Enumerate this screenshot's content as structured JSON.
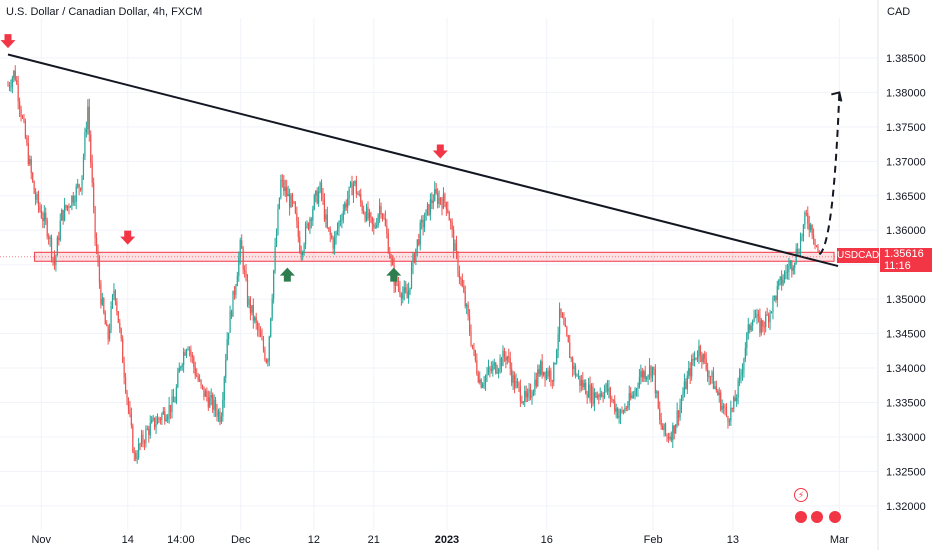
{
  "header": {
    "title": "U.S. Dollar / Canadian Dollar, 4h, FXCM",
    "currency": "CAD"
  },
  "price_axis": {
    "symbol_label": "USDCAD",
    "current_price": "1.35616",
    "countdown": "11:16"
  },
  "colors": {
    "bull": "#26a69a",
    "bear": "#ef5350",
    "trendline": "#131722",
    "zone_fill": "rgba(242,54,69,0.15)",
    "zone_stroke": "#f23645",
    "arrow_down": "#f23645",
    "arrow_up": "#2e7d4f"
  },
  "icons": [
    "arrow-down-icon",
    "arrow-up-icon",
    "flash-icon",
    "economic-event-icon"
  ],
  "chart_data": {
    "type": "candlestick",
    "title": "U.S. Dollar / Canadian Dollar, 4h, FXCM",
    "ylabel": "CAD",
    "ylim": [
      1.3165,
      1.3908
    ],
    "ytick_labels": [
      "1.32000",
      "1.32500",
      "1.33000",
      "1.33500",
      "1.34000",
      "1.34500",
      "1.35000",
      "1.35500",
      "1.36000",
      "1.36500",
      "1.37000",
      "1.37500",
      "1.38000",
      "1.38500"
    ],
    "xtick_labels": [
      "Nov",
      "14",
      "14:00",
      "Dec",
      "12",
      "21",
      "2023",
      "16",
      "Feb",
      "13",
      "Mar"
    ],
    "xlim": [
      "2022-10-27",
      "2023-03-02"
    ],
    "path": [
      [
        "2022-10-27",
        1.381
      ],
      [
        "2022-10-28",
        1.383
      ],
      [
        "2022-10-31",
        1.365
      ],
      [
        "2022-11-02",
        1.36
      ],
      [
        "2022-11-03",
        1.355
      ],
      [
        "2022-11-04",
        1.362
      ],
      [
        "2022-11-07",
        1.367
      ],
      [
        "2022-11-08",
        1.378
      ],
      [
        "2022-11-09",
        1.36
      ],
      [
        "2022-11-10",
        1.35
      ],
      [
        "2022-11-11",
        1.344
      ],
      [
        "2022-11-12",
        1.352
      ],
      [
        "2022-11-14",
        1.335
      ],
      [
        "2022-11-15",
        1.327
      ],
      [
        "2022-11-16",
        1.329
      ],
      [
        "2022-11-17",
        1.331
      ],
      [
        "2022-11-18",
        1.332
      ],
      [
        "2022-11-21",
        1.335
      ],
      [
        "2022-11-22",
        1.341
      ],
      [
        "2022-11-23",
        1.344
      ],
      [
        "2022-11-24",
        1.34
      ],
      [
        "2022-11-25",
        1.337
      ],
      [
        "2022-11-28",
        1.333
      ],
      [
        "2022-11-29",
        1.345
      ],
      [
        "2022-11-30",
        1.351
      ],
      [
        "2022-12-01",
        1.358
      ],
      [
        "2022-12-02",
        1.35
      ],
      [
        "2022-12-04",
        1.344
      ],
      [
        "2022-12-05",
        1.341
      ],
      [
        "2022-12-06",
        1.355
      ],
      [
        "2022-12-07",
        1.367
      ],
      [
        "2022-12-09",
        1.363
      ],
      [
        "2022-12-10",
        1.357
      ],
      [
        "2022-12-12",
        1.364
      ],
      [
        "2022-12-13",
        1.366
      ],
      [
        "2022-12-14",
        1.36
      ],
      [
        "2022-12-15",
        1.358
      ],
      [
        "2022-12-16",
        1.362
      ],
      [
        "2022-12-18",
        1.367
      ],
      [
        "2022-12-19",
        1.364
      ],
      [
        "2022-12-20",
        1.362
      ],
      [
        "2022-12-21",
        1.36
      ],
      [
        "2022-12-22",
        1.364
      ],
      [
        "2022-12-23",
        1.359
      ],
      [
        "2022-12-24",
        1.353
      ],
      [
        "2022-12-26",
        1.35
      ],
      [
        "2022-12-27",
        1.356
      ],
      [
        "2022-12-28",
        1.36
      ],
      [
        "2022-12-30",
        1.365
      ],
      [
        "2023-01-01",
        1.364
      ],
      [
        "2023-01-02",
        1.358
      ],
      [
        "2023-01-03",
        1.353
      ],
      [
        "2023-01-04",
        1.348
      ],
      [
        "2023-01-05",
        1.342
      ],
      [
        "2023-01-06",
        1.338
      ],
      [
        "2023-01-08",
        1.34
      ],
      [
        "2023-01-10",
        1.342
      ],
      [
        "2023-01-11",
        1.338
      ],
      [
        "2023-01-13",
        1.335
      ],
      [
        "2023-01-15",
        1.34
      ],
      [
        "2023-01-17",
        1.339
      ],
      [
        "2023-01-18",
        1.348
      ],
      [
        "2023-01-19",
        1.344
      ],
      [
        "2023-01-20",
        1.34
      ],
      [
        "2023-01-21",
        1.338
      ],
      [
        "2023-01-23",
        1.336
      ],
      [
        "2023-01-25",
        1.337
      ],
      [
        "2023-01-26",
        1.335
      ],
      [
        "2023-01-27",
        1.333
      ],
      [
        "2023-01-29",
        1.336
      ],
      [
        "2023-01-30",
        1.339
      ],
      [
        "2023-02-01",
        1.34
      ],
      [
        "2023-02-02",
        1.332
      ],
      [
        "2023-02-03",
        1.33
      ],
      [
        "2023-02-04",
        1.331
      ],
      [
        "2023-02-06",
        1.338
      ],
      [
        "2023-02-07",
        1.341
      ],
      [
        "2023-02-08",
        1.343
      ],
      [
        "2023-02-09",
        1.34
      ],
      [
        "2023-02-10",
        1.338
      ],
      [
        "2023-02-12",
        1.333
      ],
      [
        "2023-02-13",
        1.334
      ],
      [
        "2023-02-14",
        1.338
      ],
      [
        "2023-02-15",
        1.344
      ],
      [
        "2023-02-16",
        1.348
      ],
      [
        "2023-02-17",
        1.346
      ],
      [
        "2023-02-18",
        1.347
      ],
      [
        "2023-02-20",
        1.352
      ],
      [
        "2023-02-21",
        1.354
      ],
      [
        "2023-02-22",
        1.3555
      ],
      [
        "2023-02-23",
        1.358
      ],
      [
        "2023-02-24",
        1.362
      ],
      [
        "2023-02-25",
        1.36
      ],
      [
        "2023-02-26",
        1.3562
      ]
    ],
    "trendline": {
      "from": [
        "2022-10-27",
        1.3855
      ],
      "to": [
        "2023-02-27",
        1.3548
      ]
    },
    "resistance_zone": {
      "from": "2022-10-31",
      "to": "2023-02-27",
      "ylim": [
        1.3555,
        1.3568
      ]
    },
    "projection": [
      [
        "2023-02-26",
        1.3565
      ],
      [
        "2023-03-01",
        1.38
      ]
    ],
    "markers_down": [
      [
        "2022-10-27",
        1.387
      ],
      [
        "2022-11-14",
        1.3585
      ],
      [
        "2022-12-31",
        1.371
      ]
    ],
    "markers_up": [
      [
        "2022-12-08",
        1.354
      ],
      [
        "2022-12-24",
        1.354
      ]
    ],
    "last_price": 1.35616
  }
}
